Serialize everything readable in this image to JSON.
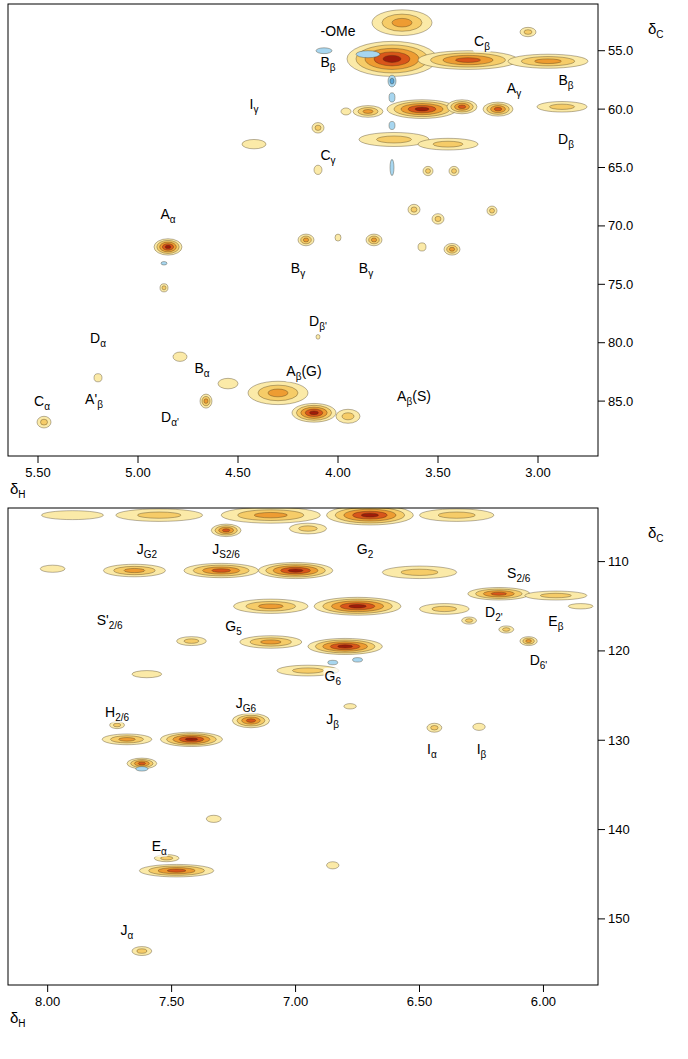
{
  "chart_data": [
    {
      "type": "contour",
      "x_label": "δH",
      "y_label": "δC",
      "xlim": [
        5.65,
        2.7
      ],
      "ylim": [
        51,
        89.7
      ],
      "xticks": [
        {
          "value": 5.5,
          "label": "5.50"
        },
        {
          "value": 5.0,
          "label": "5.00"
        },
        {
          "value": 4.5,
          "label": "4.50"
        },
        {
          "value": 4.0,
          "label": "4.00"
        },
        {
          "value": 3.5,
          "label": "3.50"
        },
        {
          "value": 3.0,
          "label": "3.00"
        }
      ],
      "yticks": [
        {
          "value": 55,
          "label": "55.0"
        },
        {
          "value": 60,
          "label": "60.0"
        },
        {
          "value": 65,
          "label": "65.0"
        },
        {
          "value": 70,
          "label": "70.0"
        },
        {
          "value": 75,
          "label": "75.0"
        },
        {
          "value": 80,
          "label": "80.0"
        },
        {
          "value": 85,
          "label": "85.0"
        }
      ],
      "peaks": [
        {
          "x": 3.73,
          "y": 55.7,
          "w": 0.45,
          "h": 3.0,
          "level": 5
        },
        {
          "x": 3.35,
          "y": 55.8,
          "w": 0.5,
          "h": 1.6,
          "level": 4
        },
        {
          "x": 2.95,
          "y": 55.9,
          "w": 0.4,
          "h": 1.2,
          "level": 3
        },
        {
          "x": 3.68,
          "y": 52.6,
          "w": 0.3,
          "h": 2.2,
          "level": 3
        },
        {
          "x": 3.05,
          "y": 53.4,
          "w": 0.08,
          "h": 0.8,
          "level": 2
        },
        {
          "x": 3.58,
          "y": 60.0,
          "w": 0.35,
          "h": 1.6,
          "level": 5
        },
        {
          "x": 3.38,
          "y": 59.8,
          "w": 0.15,
          "h": 1.2,
          "level": 4
        },
        {
          "x": 3.2,
          "y": 60.0,
          "w": 0.15,
          "h": 1.2,
          "level": 4
        },
        {
          "x": 2.88,
          "y": 59.8,
          "w": 0.25,
          "h": 0.9,
          "level": 2
        },
        {
          "x": 3.85,
          "y": 60.2,
          "w": 0.15,
          "h": 1.0,
          "level": 3
        },
        {
          "x": 3.72,
          "y": 62.6,
          "w": 0.35,
          "h": 1.2,
          "level": 2
        },
        {
          "x": 3.45,
          "y": 63.0,
          "w": 0.3,
          "h": 1.0,
          "level": 2
        },
        {
          "x": 4.42,
          "y": 63.0,
          "w": 0.12,
          "h": 0.8,
          "level": 1
        },
        {
          "x": 4.1,
          "y": 61.6,
          "w": 0.06,
          "h": 0.9,
          "level": 2
        },
        {
          "x": 3.96,
          "y": 60.2,
          "w": 0.05,
          "h": 0.6,
          "level": 1
        },
        {
          "x": 4.1,
          "y": 65.2,
          "w": 0.04,
          "h": 0.8,
          "level": 1
        },
        {
          "x": 3.55,
          "y": 65.3,
          "w": 0.05,
          "h": 0.8,
          "level": 2
        },
        {
          "x": 3.42,
          "y": 65.3,
          "w": 0.05,
          "h": 0.8,
          "level": 2
        },
        {
          "x": 3.62,
          "y": 68.6,
          "w": 0.06,
          "h": 0.9,
          "level": 2
        },
        {
          "x": 3.5,
          "y": 69.4,
          "w": 0.06,
          "h": 0.9,
          "level": 2
        },
        {
          "x": 3.23,
          "y": 68.7,
          "w": 0.05,
          "h": 0.8,
          "level": 2
        },
        {
          "x": 3.58,
          "y": 71.8,
          "w": 0.04,
          "h": 0.7,
          "level": 1
        },
        {
          "x": 3.43,
          "y": 72.0,
          "w": 0.08,
          "h": 1.0,
          "level": 3
        },
        {
          "x": 4.85,
          "y": 71.8,
          "w": 0.14,
          "h": 1.4,
          "level": 5
        },
        {
          "x": 4.87,
          "y": 75.3,
          "w": 0.04,
          "h": 0.7,
          "level": 2
        },
        {
          "x": 4.16,
          "y": 71.2,
          "w": 0.08,
          "h": 1.0,
          "level": 3
        },
        {
          "x": 3.82,
          "y": 71.2,
          "w": 0.08,
          "h": 1.0,
          "level": 3
        },
        {
          "x": 4.0,
          "y": 71.0,
          "w": 0.03,
          "h": 0.6,
          "level": 1
        },
        {
          "x": 4.1,
          "y": 79.5,
          "w": 0.02,
          "h": 0.4,
          "level": 1
        },
        {
          "x": 4.79,
          "y": 81.2,
          "w": 0.07,
          "h": 0.8,
          "level": 1
        },
        {
          "x": 5.2,
          "y": 83.0,
          "w": 0.04,
          "h": 0.7,
          "level": 1
        },
        {
          "x": 4.66,
          "y": 85.0,
          "w": 0.06,
          "h": 1.2,
          "level": 3
        },
        {
          "x": 5.47,
          "y": 86.8,
          "w": 0.07,
          "h": 1.0,
          "level": 2
        },
        {
          "x": 4.3,
          "y": 84.3,
          "w": 0.3,
          "h": 2.0,
          "level": 3
        },
        {
          "x": 4.12,
          "y": 86.0,
          "w": 0.22,
          "h": 1.6,
          "level": 5
        },
        {
          "x": 3.95,
          "y": 86.3,
          "w": 0.12,
          "h": 1.2,
          "level": 2
        },
        {
          "x": 4.55,
          "y": 83.5,
          "w": 0.1,
          "h": 0.9,
          "level": 1
        }
      ],
      "negative_peaks": [
        {
          "x": 3.85,
          "y": 55.3,
          "w": 0.12,
          "h": 0.6,
          "level": 1
        },
        {
          "x": 4.07,
          "y": 55.0,
          "w": 0.08,
          "h": 0.5,
          "level": 1
        },
        {
          "x": 3.73,
          "y": 57.6,
          "w": 0.04,
          "h": 1.0,
          "level": 2
        },
        {
          "x": 3.73,
          "y": 59.0,
          "w": 0.03,
          "h": 0.8,
          "level": 1
        },
        {
          "x": 3.73,
          "y": 61.4,
          "w": 0.03,
          "h": 0.7,
          "level": 1
        },
        {
          "x": 3.73,
          "y": 65.0,
          "w": 0.02,
          "h": 1.4,
          "level": 1
        },
        {
          "x": 4.87,
          "y": 73.2,
          "w": 0.03,
          "h": 0.3,
          "level": 1
        }
      ],
      "annotations": [
        {
          "text": "-OMe",
          "x": 4.0,
          "y": 53.3
        },
        {
          "text": "B",
          "sub": "β",
          "x": 4.05,
          "y": 56.0
        },
        {
          "text": "C",
          "sub": "β",
          "x": 3.28,
          "y": 54.2
        },
        {
          "text": "B",
          "sub": "β",
          "x": 2.86,
          "y": 57.5
        },
        {
          "text": "A",
          "sub": "γ",
          "x": 3.12,
          "y": 58.2
        },
        {
          "text": "I",
          "sub": "γ",
          "x": 4.42,
          "y": 59.6
        },
        {
          "text": "D",
          "sub": "β",
          "x": 2.86,
          "y": 62.6
        },
        {
          "text": "C",
          "sub": "γ",
          "x": 4.05,
          "y": 63.9
        },
        {
          "text": "A",
          "sub": "α",
          "x": 4.85,
          "y": 69.0
        },
        {
          "text": "B",
          "sub": "γ",
          "x": 4.2,
          "y": 73.6
        },
        {
          "text": "B",
          "sub": "γ",
          "x": 3.86,
          "y": 73.6
        },
        {
          "text": "D",
          "sub": "β'",
          "x": 4.1,
          "y": 78.1
        },
        {
          "text": "D",
          "sub": "α",
          "x": 5.2,
          "y": 79.6
        },
        {
          "text": "B",
          "sub": "α",
          "x": 4.68,
          "y": 82.2
        },
        {
          "text": "A",
          "sub": "β",
          "after": "(G)",
          "x": 4.17,
          "y": 82.4
        },
        {
          "text": "C",
          "sub": "α",
          "x": 5.48,
          "y": 85.0
        },
        {
          "text": "A'",
          "sub": "β",
          "x": 5.22,
          "y": 84.8
        },
        {
          "text": "D",
          "sub": "α'",
          "x": 4.84,
          "y": 86.4
        },
        {
          "text": "A",
          "sub": "β",
          "after": "(S)",
          "x": 3.62,
          "y": 84.6
        }
      ]
    },
    {
      "type": "contour",
      "x_label": "δH",
      "y_label": "δC",
      "xlim": [
        8.16,
        5.78
      ],
      "ylim": [
        104,
        157.4
      ],
      "xticks": [
        {
          "value": 8.0,
          "label": "8.00"
        },
        {
          "value": 7.5,
          "label": "7.50"
        },
        {
          "value": 7.0,
          "label": "7.00"
        },
        {
          "value": 6.5,
          "label": "6.50"
        },
        {
          "value": 6.0,
          "label": "6.00"
        }
      ],
      "yticks": [
        110,
        120,
        130,
        140,
        150
      ],
      "peaks": [
        {
          "x": 6.7,
          "y": 104.8,
          "w": 0.35,
          "h": 2.2,
          "level": 5
        },
        {
          "x": 7.1,
          "y": 104.8,
          "w": 0.4,
          "h": 1.8,
          "level": 3
        },
        {
          "x": 7.55,
          "y": 104.8,
          "w": 0.35,
          "h": 1.4,
          "level": 2
        },
        {
          "x": 6.35,
          "y": 104.8,
          "w": 0.3,
          "h": 1.4,
          "level": 2
        },
        {
          "x": 7.9,
          "y": 104.8,
          "w": 0.25,
          "h": 1.0,
          "level": 1
        },
        {
          "x": 7.28,
          "y": 106.5,
          "w": 0.12,
          "h": 1.4,
          "level": 4
        },
        {
          "x": 6.95,
          "y": 106.3,
          "w": 0.15,
          "h": 1.2,
          "level": 2
        },
        {
          "x": 7.0,
          "y": 111.0,
          "w": 0.3,
          "h": 1.8,
          "level": 5
        },
        {
          "x": 7.3,
          "y": 111.0,
          "w": 0.3,
          "h": 1.6,
          "level": 4
        },
        {
          "x": 7.65,
          "y": 111.0,
          "w": 0.25,
          "h": 1.4,
          "level": 3
        },
        {
          "x": 6.5,
          "y": 111.2,
          "w": 0.3,
          "h": 1.4,
          "level": 2
        },
        {
          "x": 7.98,
          "y": 110.8,
          "w": 0.1,
          "h": 0.8,
          "level": 1
        },
        {
          "x": 6.75,
          "y": 115.0,
          "w": 0.35,
          "h": 2.0,
          "level": 5
        },
        {
          "x": 7.1,
          "y": 115.0,
          "w": 0.3,
          "h": 1.6,
          "level": 3
        },
        {
          "x": 6.4,
          "y": 115.3,
          "w": 0.2,
          "h": 1.2,
          "level": 2
        },
        {
          "x": 6.18,
          "y": 113.6,
          "w": 0.25,
          "h": 1.4,
          "level": 4
        },
        {
          "x": 5.95,
          "y": 113.8,
          "w": 0.25,
          "h": 1.0,
          "level": 2
        },
        {
          "x": 5.85,
          "y": 115.0,
          "w": 0.1,
          "h": 0.6,
          "level": 1
        },
        {
          "x": 6.8,
          "y": 119.5,
          "w": 0.3,
          "h": 1.8,
          "level": 5
        },
        {
          "x": 7.1,
          "y": 119.0,
          "w": 0.25,
          "h": 1.4,
          "level": 3
        },
        {
          "x": 7.42,
          "y": 118.9,
          "w": 0.12,
          "h": 1.0,
          "level": 2
        },
        {
          "x": 6.3,
          "y": 116.6,
          "w": 0.06,
          "h": 0.8,
          "level": 2
        },
        {
          "x": 6.15,
          "y": 117.6,
          "w": 0.06,
          "h": 0.8,
          "level": 2
        },
        {
          "x": 6.06,
          "y": 118.9,
          "w": 0.07,
          "h": 1.0,
          "level": 3
        },
        {
          "x": 6.95,
          "y": 122.2,
          "w": 0.25,
          "h": 1.2,
          "level": 2
        },
        {
          "x": 7.6,
          "y": 122.6,
          "w": 0.12,
          "h": 0.8,
          "level": 1
        },
        {
          "x": 7.18,
          "y": 127.8,
          "w": 0.15,
          "h": 1.6,
          "level": 4
        },
        {
          "x": 7.42,
          "y": 129.9,
          "w": 0.25,
          "h": 1.6,
          "level": 5
        },
        {
          "x": 7.68,
          "y": 129.9,
          "w": 0.2,
          "h": 1.2,
          "level": 3
        },
        {
          "x": 7.62,
          "y": 132.6,
          "w": 0.12,
          "h": 1.2,
          "level": 4
        },
        {
          "x": 7.72,
          "y": 128.3,
          "w": 0.06,
          "h": 0.8,
          "level": 2
        },
        {
          "x": 6.78,
          "y": 126.2,
          "w": 0.05,
          "h": 0.6,
          "level": 1
        },
        {
          "x": 6.44,
          "y": 128.6,
          "w": 0.06,
          "h": 1.0,
          "level": 2
        },
        {
          "x": 6.26,
          "y": 128.5,
          "w": 0.05,
          "h": 0.8,
          "level": 1
        },
        {
          "x": 7.33,
          "y": 138.8,
          "w": 0.06,
          "h": 0.8,
          "level": 1
        },
        {
          "x": 7.48,
          "y": 144.6,
          "w": 0.3,
          "h": 1.4,
          "level": 4
        },
        {
          "x": 7.52,
          "y": 143.2,
          "w": 0.1,
          "h": 0.8,
          "level": 2
        },
        {
          "x": 6.85,
          "y": 144.0,
          "w": 0.05,
          "h": 0.8,
          "level": 1
        },
        {
          "x": 7.62,
          "y": 153.6,
          "w": 0.08,
          "h": 1.0,
          "level": 2
        }
      ],
      "negative_peaks": [
        {
          "x": 6.75,
          "y": 121.0,
          "w": 0.04,
          "h": 0.5,
          "level": 1
        },
        {
          "x": 6.85,
          "y": 121.3,
          "w": 0.04,
          "h": 0.5,
          "level": 1
        },
        {
          "x": 7.62,
          "y": 133.2,
          "w": 0.05,
          "h": 0.5,
          "level": 1
        }
      ],
      "annotations": [
        {
          "text": "J",
          "sub": "G2",
          "x": 7.6,
          "y": 108.6
        },
        {
          "text": "J",
          "sub": "S2/6",
          "x": 7.28,
          "y": 108.6
        },
        {
          "text": "G",
          "sub": "2",
          "x": 6.72,
          "y": 108.6
        },
        {
          "text": "S",
          "sub": "2/6",
          "x": 6.1,
          "y": 111.3
        },
        {
          "text": "S'",
          "sub": "2/6",
          "x": 7.75,
          "y": 116.5
        },
        {
          "text": "G",
          "sub": "5",
          "x": 7.25,
          "y": 117.2
        },
        {
          "text": "D",
          "sub": "2'",
          "x": 6.2,
          "y": 115.6
        },
        {
          "text": "E",
          "sub": "β",
          "x": 5.95,
          "y": 116.6
        },
        {
          "text": "D",
          "sub": "6'",
          "x": 6.02,
          "y": 121.0
        },
        {
          "text": "G",
          "sub": "6",
          "x": 6.85,
          "y": 122.8
        },
        {
          "text": "J",
          "sub": "β",
          "x": 6.85,
          "y": 127.6
        },
        {
          "text": "J",
          "sub": "G6",
          "x": 7.2,
          "y": 125.8
        },
        {
          "text": "H",
          "sub": "2/6",
          "x": 7.72,
          "y": 126.8
        },
        {
          "text": "I",
          "sub": "α",
          "x": 6.45,
          "y": 131.0
        },
        {
          "text": "I",
          "sub": "β",
          "x": 6.25,
          "y": 131.0
        },
        {
          "text": "E",
          "sub": "α",
          "x": 7.55,
          "y": 141.8
        },
        {
          "text": "J",
          "sub": "α",
          "x": 7.68,
          "y": 151.2
        }
      ]
    }
  ]
}
